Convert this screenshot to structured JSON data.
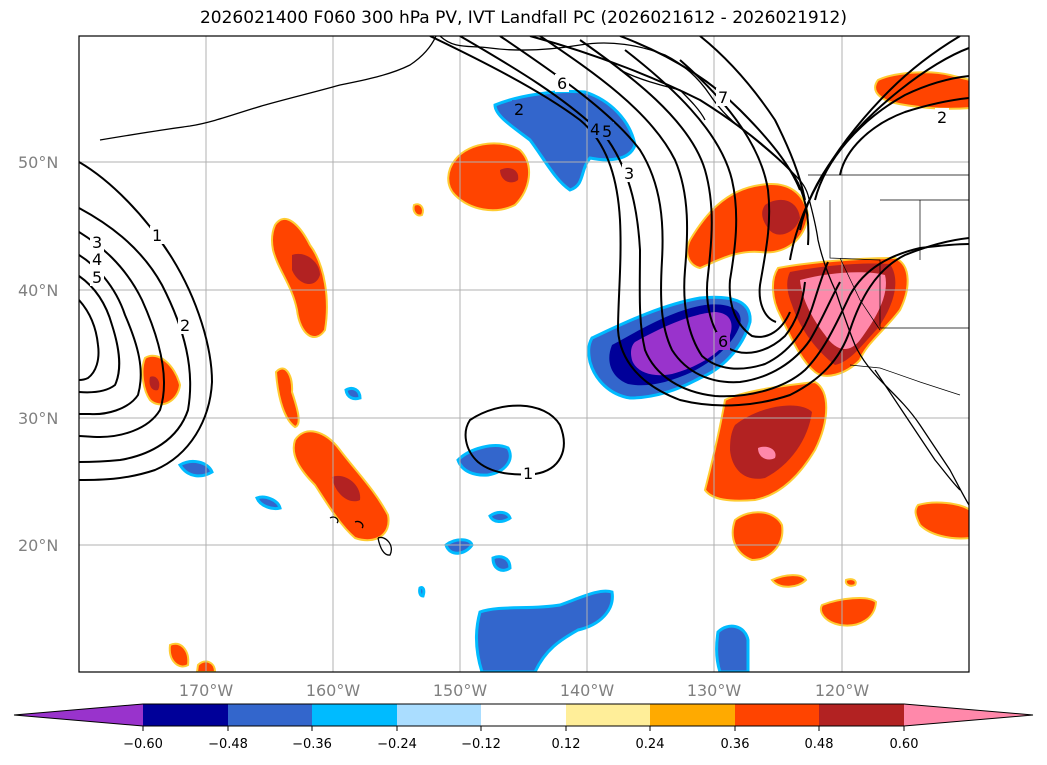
{
  "title": "2026021400 F060 300 hPa PV, IVT Landfall PC (2026021612 - 2026021912)",
  "map": {
    "lat_labels": [
      "50°N",
      "40°N",
      "30°N",
      "20°N"
    ],
    "lon_labels": [
      "170°W",
      "160°W",
      "150°W",
      "140°W",
      "130°W",
      "120°W"
    ],
    "contour_labels": [
      "1",
      "2",
      "3",
      "4",
      "5",
      "6",
      "1",
      "2",
      "3",
      "4",
      "5",
      "6",
      "7",
      "2"
    ],
    "line_color": "#000000",
    "grid_color": "#b0b0b0"
  },
  "colorbar": {
    "ticks": [
      "−0.60",
      "−0.48",
      "−0.36",
      "−0.24",
      "−0.12",
      "0.12",
      "0.24",
      "0.36",
      "0.48",
      "0.60"
    ],
    "colors": [
      "#9933cc",
      "#000099",
      "#3366cc",
      "#00bbff",
      "#aaddff",
      "#ffffff",
      "#ffee99",
      "#ffaa00",
      "#ff4400",
      "#b22222",
      "#ff88aa"
    ]
  }
}
